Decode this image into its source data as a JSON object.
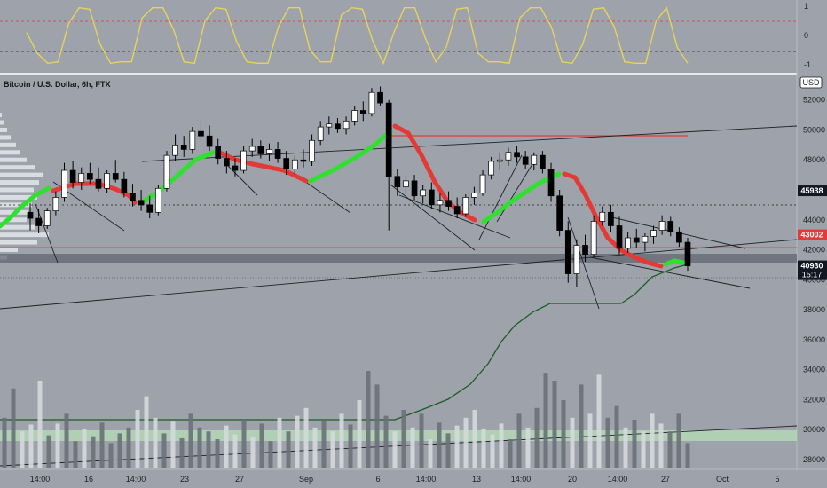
{
  "header": {
    "title": "Bitcoin / U.S. Dollar, 6h, FTX",
    "currency": "USD"
  },
  "osc_axis": {
    "labels": [
      "1",
      "0",
      "-1"
    ],
    "values": [
      1,
      0,
      -1
    ]
  },
  "price_axis": {
    "ticks": [
      52000,
      50000,
      48000,
      46000,
      44000,
      42000,
      40000,
      38000,
      36000,
      34000,
      32000,
      30000,
      28000
    ],
    "tick_labels": [
      "52000",
      "50000",
      "48000",
      "46000",
      "44000",
      "42000",
      "40000",
      "38000",
      "36000",
      "34000",
      "32000",
      "30000",
      "28000"
    ],
    "ylim": [
      27400,
      53700
    ]
  },
  "price_tags": [
    {
      "label": "45938",
      "value": 45938,
      "bg": "#131722",
      "fg": "#ffffff"
    },
    {
      "label": "43002",
      "value": 43002,
      "bg": "#e53935",
      "fg": "#ffffff"
    },
    {
      "label": "40930",
      "value": 40930,
      "countdown": "15:17",
      "bg": "#131722",
      "fg": "#ffffff"
    }
  ],
  "time_axis": {
    "labels": [
      "14:00",
      "16",
      "14:00",
      "23",
      "27",
      "Sep",
      "6",
      "14:00",
      "13",
      "14:00",
      "20",
      "14:00",
      "27",
      "Oct",
      "5"
    ],
    "positions": [
      45,
      100,
      153,
      208,
      270,
      345,
      426,
      480,
      537,
      587,
      645,
      696,
      750,
      814,
      876
    ]
  },
  "colors": {
    "background": "#9da2ab",
    "bull": "#ffffff",
    "bear": "#000000",
    "trend_up": "#2fe12f",
    "trend_down": "#e53935",
    "oscillator": "#e8d35a",
    "cum_line": "#1b5e20",
    "hline_red": "#e53935",
    "zone": "#5e636c",
    "vol_zone": "#b6dfb6"
  },
  "chart_data": {
    "type": "candlestick",
    "symbol": "Bitcoin / U.S. Dollar",
    "interval": "6h",
    "exchange": "FTX",
    "ohlc": [
      [
        44500,
        45100,
        43300,
        44100
      ],
      [
        44100,
        44700,
        43100,
        43600
      ],
      [
        43600,
        44800,
        43400,
        44600
      ],
      [
        44600,
        45900,
        44300,
        45500
      ],
      [
        45500,
        47800,
        45200,
        47300
      ],
      [
        47300,
        47900,
        46100,
        46500
      ],
      [
        46500,
        47500,
        46000,
        47100
      ],
      [
        47100,
        47800,
        46400,
        46700
      ],
      [
        46700,
        47500,
        45900,
        46100
      ],
      [
        46100,
        47300,
        45800,
        47100
      ],
      [
        47100,
        48000,
        46500,
        46700
      ],
      [
        46700,
        47200,
        45500,
        45800
      ],
      [
        45800,
        46400,
        44900,
        45300
      ],
      [
        45300,
        46000,
        44600,
        45000
      ],
      [
        45000,
        45600,
        44100,
        44500
      ],
      [
        44500,
        46300,
        44300,
        46100
      ],
      [
        46100,
        48600,
        45900,
        48300
      ],
      [
        48300,
        49700,
        47900,
        49000
      ],
      [
        49000,
        49600,
        48200,
        48700
      ],
      [
        48700,
        50200,
        48400,
        49900
      ],
      [
        49900,
        50600,
        49300,
        49600
      ],
      [
        49600,
        50300,
        48600,
        48900
      ],
      [
        48900,
        49400,
        47700,
        48100
      ],
      [
        48100,
        48600,
        47100,
        47600
      ],
      [
        47600,
        48100,
        46900,
        47300
      ],
      [
        47300,
        48900,
        47100,
        48600
      ],
      [
        48600,
        49400,
        48200,
        48900
      ],
      [
        48900,
        49300,
        48100,
        48400
      ],
      [
        48400,
        49100,
        47900,
        48700
      ],
      [
        48700,
        49200,
        47800,
        48100
      ],
      [
        48100,
        48600,
        47000,
        47400
      ],
      [
        47400,
        48300,
        47000,
        48000
      ],
      [
        48000,
        48700,
        47500,
        47900
      ],
      [
        47900,
        49700,
        47600,
        49300
      ],
      [
        49300,
        50600,
        49000,
        50200
      ],
      [
        50200,
        50900,
        49700,
        50400
      ],
      [
        50400,
        50800,
        49800,
        50100
      ],
      [
        50100,
        50900,
        49700,
        50600
      ],
      [
        50600,
        51600,
        50300,
        51300
      ],
      [
        51300,
        51900,
        50600,
        51100
      ],
      [
        51100,
        52800,
        50900,
        52500
      ],
      [
        52500,
        52900,
        51600,
        51800
      ],
      [
        51800,
        52000,
        43300,
        46900
      ],
      [
        46900,
        47400,
        45600,
        46200
      ],
      [
        46200,
        47000,
        45700,
        46600
      ],
      [
        46600,
        47000,
        45300,
        45600
      ],
      [
        45600,
        46300,
        45100,
        46000
      ],
      [
        46000,
        46500,
        44700,
        45000
      ],
      [
        45000,
        45800,
        44500,
        45300
      ],
      [
        45300,
        45900,
        44600,
        44900
      ],
      [
        44900,
        45500,
        44100,
        44400
      ],
      [
        44400,
        45700,
        44200,
        45500
      ],
      [
        45500,
        46200,
        45000,
        45800
      ],
      [
        45800,
        47300,
        45600,
        47000
      ],
      [
        47000,
        48200,
        46700,
        47900
      ],
      [
        47900,
        48500,
        47300,
        48000
      ],
      [
        48000,
        48800,
        47600,
        48500
      ],
      [
        48500,
        48900,
        47800,
        48200
      ],
      [
        48200,
        48600,
        47400,
        47700
      ],
      [
        47700,
        48500,
        47300,
        48300
      ],
      [
        48300,
        48600,
        47100,
        47400
      ],
      [
        47400,
        47800,
        45200,
        45600
      ],
      [
        45600,
        46000,
        42900,
        43300
      ],
      [
        43300,
        43900,
        39800,
        40400
      ],
      [
        40400,
        42700,
        39500,
        42300
      ],
      [
        42300,
        43000,
        41200,
        41700
      ],
      [
        41700,
        44300,
        41500,
        43900
      ],
      [
        43900,
        44900,
        43600,
        44500
      ],
      [
        44500,
        45000,
        43200,
        43600
      ],
      [
        43600,
        44200,
        41700,
        42100
      ],
      [
        42100,
        43200,
        41800,
        42800
      ],
      [
        42800,
        43400,
        42100,
        42500
      ],
      [
        42500,
        43100,
        41900,
        42900
      ],
      [
        42900,
        43600,
        42400,
        43300
      ],
      [
        43300,
        44300,
        43000,
        43900
      ],
      [
        43900,
        44200,
        42900,
        43200
      ],
      [
        43200,
        43500,
        42200,
        42500
      ],
      [
        42500,
        42800,
        40600,
        40930
      ]
    ],
    "volume": [
      520,
      820,
      380,
      450,
      900,
      340,
      460,
      560,
      280,
      400,
      330,
      470,
      260,
      360,
      420,
      600,
      740,
      520,
      360,
      480,
      310,
      560,
      420,
      380,
      300,
      440,
      350,
      500,
      320,
      460,
      280,
      520,
      380,
      540,
      620,
      420,
      490,
      380,
      560,
      450,
      700,
      1000,
      860,
      540,
      380,
      600,
      420,
      560,
      300,
      470,
      360,
      440,
      520,
      600,
      410,
      350,
      460,
      300,
      560,
      420,
      620,
      980,
      900,
      700,
      520,
      860,
      560,
      960,
      520,
      640,
      420,
      500,
      380,
      560,
      460,
      380,
      560,
      260
    ],
    "oscillator": {
      "values": [
        0.1,
        -0.6,
        -0.95,
        -0.9,
        0.4,
        0.95,
        0.9,
        -0.3,
        -0.95,
        -0.9,
        -0.9,
        0.6,
        0.95,
        0.95,
        0.2,
        -0.9,
        -0.95,
        0.5,
        0.95,
        0.9,
        -0.2,
        -0.9,
        -0.95,
        -0.95,
        0.3,
        0.95,
        0.95,
        -0.5,
        -0.9,
        -0.9,
        0.7,
        0.95,
        0.9,
        -0.2,
        -0.95,
        0.1,
        0.95,
        0.95,
        -0.1,
        -0.9,
        -0.4,
        0.9,
        0.95,
        -0.6,
        -0.9,
        -0.9,
        -0.95,
        0.6,
        0.95,
        0.95,
        0.3,
        -0.9,
        -0.95,
        -0.3,
        0.9,
        0.95,
        0.3,
        -0.9,
        -0.95,
        -0.95,
        0.5,
        0.95,
        -0.4,
        -0.95
      ]
    }
  }
}
